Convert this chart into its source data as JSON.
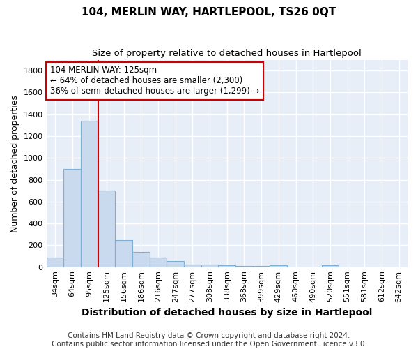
{
  "title": "104, MERLIN WAY, HARTLEPOOL, TS26 0QT",
  "subtitle": "Size of property relative to detached houses in Hartlepool",
  "xlabel": "Distribution of detached houses by size in Hartlepool",
  "ylabel": "Number of detached properties",
  "footer_line1": "Contains HM Land Registry data © Crown copyright and database right 2024.",
  "footer_line2": "Contains public sector information licensed under the Open Government Licence v3.0.",
  "annotation_title": "104 MERLIN WAY: 125sqm",
  "annotation_line1": "← 64% of detached houses are smaller (2,300)",
  "annotation_line2": "36% of semi-detached houses are larger (1,299) →",
  "categories": [
    "34sqm",
    "64sqm",
    "95sqm",
    "125sqm",
    "156sqm",
    "186sqm",
    "216sqm",
    "247sqm",
    "277sqm",
    "308sqm",
    "338sqm",
    "368sqm",
    "399sqm",
    "429sqm",
    "460sqm",
    "490sqm",
    "520sqm",
    "551sqm",
    "581sqm",
    "612sqm",
    "642sqm"
  ],
  "values": [
    90,
    900,
    1340,
    700,
    245,
    140,
    85,
    55,
    25,
    25,
    15,
    10,
    10,
    15,
    0,
    0,
    15,
    0,
    0,
    0,
    0
  ],
  "bar_color": "#c9d9ee",
  "bar_edge_color": "#7bafd4",
  "fig_background_color": "#ffffff",
  "plot_background_color": "#e8eef8",
  "red_line_color": "#cc0000",
  "annotation_box_facecolor": "#ffffff",
  "annotation_box_edgecolor": "#cc0000",
  "ylim": [
    0,
    1900
  ],
  "yticks": [
    0,
    200,
    400,
    600,
    800,
    1000,
    1200,
    1400,
    1600,
    1800
  ],
  "grid_color": "#ffffff",
  "title_fontsize": 11,
  "subtitle_fontsize": 9.5,
  "ylabel_fontsize": 9,
  "xlabel_fontsize": 10,
  "tick_fontsize": 8,
  "annotation_fontsize": 8.5,
  "footer_fontsize": 7.5
}
